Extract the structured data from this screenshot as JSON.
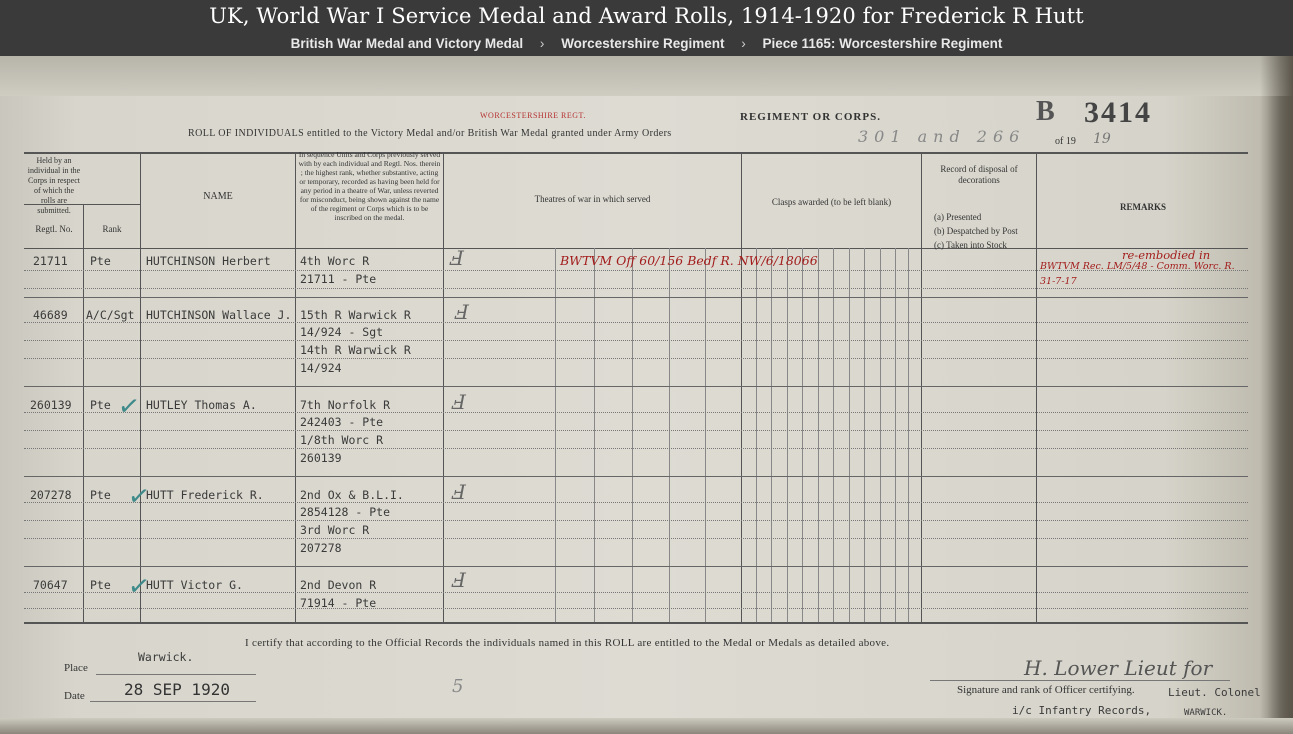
{
  "page": {
    "title": "UK, World War I Service Medal and Award Rolls, 1914-1920 for Frederick R Hutt",
    "breadcrumbs": [
      "British War Medal and Victory Medal",
      "Worcestershire Regiment",
      "Piece 1165: Worcestershire Regiment"
    ],
    "breadcrumb_separator": "›"
  },
  "document": {
    "stamp_regt": "WORCESTERSHIRE REGT.",
    "regiment_label": "REGIMENT OR CORPS.",
    "roll_number": "3414",
    "roll_prefix": "B",
    "roll_intro": "ROLL OF INDIVIDUALS entitled to the Victory Medal and/or British War Medal granted under Army Orders",
    "army_orders": "301 and 266",
    "year_label": "of 19",
    "year_hand": "19",
    "columns": {
      "held_by": "Held by an individual in the Corps in respect of which the rolls are submitted.",
      "regtl_no": "Regtl. No.",
      "rank": "Rank",
      "name": "NAME",
      "units": "In sequence Units and Corps previously served with by each individual and Regtl. Nos. therein ; the highest rank, whether substantive, acting or temporary, recorded as having been held for any period in a theatre of War, unless reverted for misconduct, being shown against the name of the regiment or Corps which is to be inscribed on the medal.",
      "theatres": "Theatres of war in which served",
      "clasps": "Clasps awarded (to be left blank)",
      "disposal": "Record of disposal of decorations",
      "disposal_a": "(a) Presented",
      "disposal_b": "(b) Despatched by Post",
      "disposal_c": "(c) Taken into Stock",
      "remarks": "REMARKS"
    },
    "entries": [
      {
        "regtl_no": "21711",
        "rank": "Pte",
        "name": "HUTCHINSON Herbert",
        "units": [
          "4th Worc R",
          "21711 - Pte"
        ],
        "annotation": "BWTVM Off 60/156 Bedf R. NW/6/18066",
        "remarks": [
          "re-embodied in",
          "BWTVM Rec. LM/5/48 - Comm. Worc. R.",
          "31-7-17"
        ]
      },
      {
        "regtl_no": "46689",
        "rank": "A/C/Sgt",
        "name": "HUTCHINSON Wallace J.",
        "units": [
          "15th R Warwick R",
          "14/924 - Sgt",
          "14th R Warwick R",
          "14/924"
        ],
        "annotation": "",
        "remarks": []
      },
      {
        "regtl_no": "260139",
        "rank": "Pte",
        "name": "HUTLEY Thomas A.",
        "units": [
          "7th Norfolk R",
          "242403 - Pte",
          "1/8th Worc R",
          "260139"
        ],
        "annotation": "",
        "remarks": []
      },
      {
        "regtl_no": "207278",
        "rank": "Pte",
        "name": "HUTT Frederick R.",
        "units": [
          "2nd Ox & B.L.I.",
          "2854128 - Pte",
          "3rd Worc R",
          "207278"
        ],
        "annotation": "",
        "remarks": []
      },
      {
        "regtl_no": "70647",
        "rank": "Pte",
        "name": "HUTT Victor G.",
        "units": [
          "2nd Devon R",
          "71914 - Pte"
        ],
        "annotation": "",
        "remarks": []
      }
    ],
    "certify": "I certify that according to the Official Records the individuals named in this ROLL are entitled to the Medal or Medals as detailed above.",
    "place_label": "Place",
    "place_value": "Warwick.",
    "date_label": "Date",
    "date_value": "28 SEP 1920",
    "signature_label": "Signature and rank of Officer certifying.",
    "signature_hand": "H. Lower  Lieut for",
    "officer_rank": "Lieut. Colonel",
    "officer_unit": "i/c Infantry Records,",
    "officer_place": "WARWICK.",
    "page_mark": "5"
  }
}
